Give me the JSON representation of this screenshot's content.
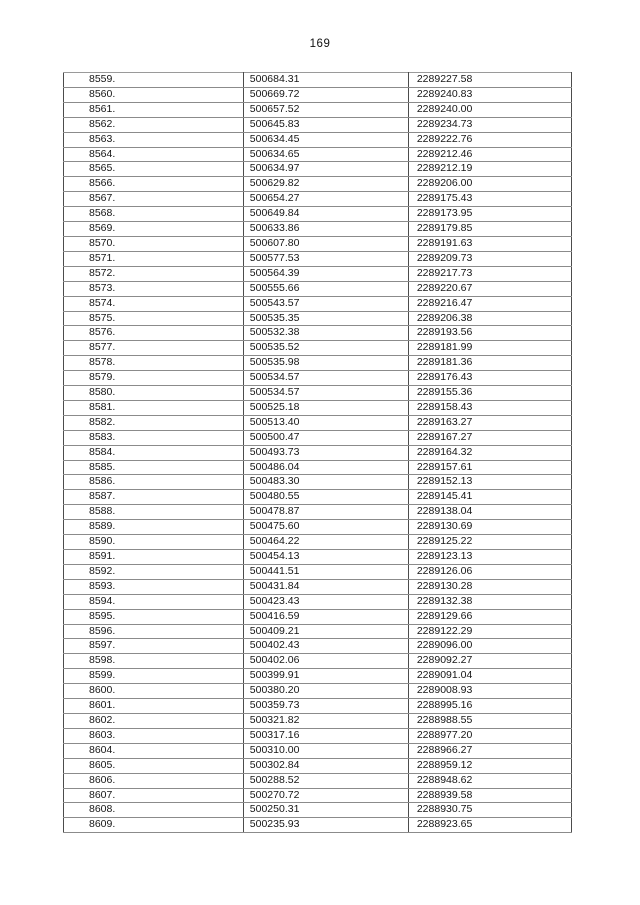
{
  "page": {
    "number": "169"
  },
  "colors": {
    "background": "#ffffff",
    "text": "#161616",
    "border_outer": "#3d3d3d",
    "border_vertical": "#4c4c4c",
    "border_horizontal": "#8b8b8b"
  },
  "table": {
    "rows": [
      {
        "index": "8559.",
        "x": "500684.31",
        "y": "2289227.58"
      },
      {
        "index": "8560.",
        "x": "500669.72",
        "y": "2289240.83"
      },
      {
        "index": "8561.",
        "x": "500657.52",
        "y": "2289240.00"
      },
      {
        "index": "8562.",
        "x": "500645.83",
        "y": "2289234.73"
      },
      {
        "index": "8563.",
        "x": "500634.45",
        "y": "2289222.76"
      },
      {
        "index": "8564.",
        "x": "500634.65",
        "y": "2289212.46"
      },
      {
        "index": "8565.",
        "x": "500634.97",
        "y": "2289212.19"
      },
      {
        "index": "8566.",
        "x": "500629.82",
        "y": "2289206.00"
      },
      {
        "index": "8567.",
        "x": "500654.27",
        "y": "2289175.43"
      },
      {
        "index": "8568.",
        "x": "500649.84",
        "y": "2289173.95"
      },
      {
        "index": "8569.",
        "x": "500633.86",
        "y": "2289179.85"
      },
      {
        "index": "8570.",
        "x": "500607.80",
        "y": "2289191.63"
      },
      {
        "index": "8571.",
        "x": "500577.53",
        "y": "2289209.73"
      },
      {
        "index": "8572.",
        "x": "500564.39",
        "y": "2289217.73"
      },
      {
        "index": "8573.",
        "x": "500555.66",
        "y": "2289220.67"
      },
      {
        "index": "8574.",
        "x": "500543.57",
        "y": "2289216.47"
      },
      {
        "index": "8575.",
        "x": "500535.35",
        "y": "2289206.38"
      },
      {
        "index": "8576.",
        "x": "500532.38",
        "y": "2289193.56"
      },
      {
        "index": "8577.",
        "x": "500535.52",
        "y": "2289181.99"
      },
      {
        "index": "8578.",
        "x": "500535.98",
        "y": "2289181.36"
      },
      {
        "index": "8579.",
        "x": "500534.57",
        "y": "2289176.43"
      },
      {
        "index": "8580.",
        "x": "500534.57",
        "y": "2289155.36"
      },
      {
        "index": "8581.",
        "x": "500525.18",
        "y": "2289158.43"
      },
      {
        "index": "8582.",
        "x": "500513.40",
        "y": "2289163.27"
      },
      {
        "index": "8583.",
        "x": "500500.47",
        "y": "2289167.27"
      },
      {
        "index": "8584.",
        "x": "500493.73",
        "y": "2289164.32"
      },
      {
        "index": "8585.",
        "x": "500486.04",
        "y": "2289157.61"
      },
      {
        "index": "8586.",
        "x": "500483.30",
        "y": "2289152.13"
      },
      {
        "index": "8587.",
        "x": "500480.55",
        "y": "2289145.41"
      },
      {
        "index": "8588.",
        "x": "500478.87",
        "y": "2289138.04"
      },
      {
        "index": "8589.",
        "x": "500475.60",
        "y": "2289130.69"
      },
      {
        "index": "8590.",
        "x": "500464.22",
        "y": "2289125.22"
      },
      {
        "index": "8591.",
        "x": "500454.13",
        "y": "2289123.13"
      },
      {
        "index": "8592.",
        "x": "500441.51",
        "y": "2289126.06"
      },
      {
        "index": "8593.",
        "x": "500431.84",
        "y": "2289130.28"
      },
      {
        "index": "8594.",
        "x": "500423.43",
        "y": "2289132.38"
      },
      {
        "index": "8595.",
        "x": "500416.59",
        "y": "2289129.66"
      },
      {
        "index": "8596.",
        "x": "500409.21",
        "y": "2289122.29"
      },
      {
        "index": "8597.",
        "x": "500402.43",
        "y": "2289096.00"
      },
      {
        "index": "8598.",
        "x": "500402.06",
        "y": "2289092.27"
      },
      {
        "index": "8599.",
        "x": "500399.91",
        "y": "2289091.04"
      },
      {
        "index": "8600.",
        "x": "500380.20",
        "y": "2289008.93"
      },
      {
        "index": "8601.",
        "x": "500359.73",
        "y": "2288995.16"
      },
      {
        "index": "8602.",
        "x": "500321.82",
        "y": "2288988.55"
      },
      {
        "index": "8603.",
        "x": "500317.16",
        "y": "2288977.20"
      },
      {
        "index": "8604.",
        "x": "500310.00",
        "y": "2288966.27"
      },
      {
        "index": "8605.",
        "x": "500302.84",
        "y": "2288959.12"
      },
      {
        "index": "8606.",
        "x": "500288.52",
        "y": "2288948.62"
      },
      {
        "index": "8607.",
        "x": "500270.72",
        "y": "2288939.58"
      },
      {
        "index": "8608.",
        "x": "500250.31",
        "y": "2288930.75"
      },
      {
        "index": "8609.",
        "x": "500235.93",
        "y": "2288923.65"
      }
    ]
  }
}
